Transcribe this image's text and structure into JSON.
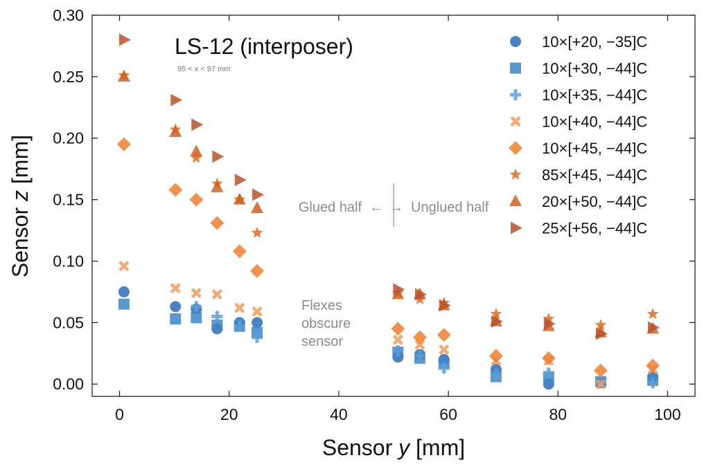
{
  "chart_data": {
    "type": "scatter",
    "title": "LS-12 (interposer)",
    "subtitle": "95 < x < 97 mm",
    "xlabel_prefix": "Sensor ",
    "xlabel_var": "y",
    "xlabel_suffix": " [mm]",
    "ylabel_prefix": "Sensor ",
    "ylabel_var": "z",
    "ylabel_suffix": " [mm]",
    "xlim": [
      -5,
      105
    ],
    "ylim": [
      -0.01,
      0.3
    ],
    "xticks": [
      0,
      20,
      40,
      60,
      80,
      100
    ],
    "xtick_labels": [
      "0",
      "20",
      "40",
      "60",
      "80",
      "100"
    ],
    "yticks": [
      0.0,
      0.05,
      0.1,
      0.15,
      0.2,
      0.25,
      0.3
    ],
    "ytick_labels": [
      "0.00",
      "0.05",
      "0.10",
      "0.15",
      "0.20",
      "0.25",
      "0.30"
    ],
    "grid": false,
    "legend_position": "top-right",
    "annotations": {
      "glued_half": "Glued half",
      "unglued_half": "Unglued half",
      "left_arrow": "←",
      "right_arrow": "→",
      "flexes_line1": "Flexes",
      "flexes_line2": "obscure",
      "flexes_line3": "sensor",
      "divider_x": 50
    },
    "x": [
      0.8,
      10.2,
      14.0,
      17.8,
      21.9,
      25.1,
      50.8,
      54.8,
      59.2,
      68.7,
      78.3,
      87.8,
      97.3
    ],
    "series": [
      {
        "name": "10×[+20, −35]C",
        "marker": "circle",
        "color": "#2b6cb5",
        "y": [
          0.075,
          0.063,
          0.061,
          0.045,
          0.05,
          0.05,
          0.022,
          0.024,
          0.02,
          0.012,
          0.0,
          0.001,
          0.006
        ]
      },
      {
        "name": "10×[+30, −44]C",
        "marker": "square",
        "color": "#3f86c8",
        "y": [
          0.065,
          0.053,
          0.054,
          0.048,
          0.047,
          0.042,
          0.026,
          0.021,
          0.017,
          0.006,
          0.006,
          0.002,
          0.003
        ]
      },
      {
        "name": "10×[+35, −44]C",
        "marker": "plus",
        "color": "#5a9fd6",
        "y": [
          null,
          null,
          0.063,
          0.055,
          0.047,
          0.038,
          0.027,
          0.023,
          0.013,
          0.008,
          0.009,
          0.001,
          0.001
        ]
      },
      {
        "name": "10×[+40, −44]C",
        "marker": "x",
        "color": "#f29a5a",
        "y": [
          0.096,
          0.078,
          0.074,
          0.073,
          0.062,
          0.059,
          0.036,
          0.032,
          0.028,
          0.019,
          0.019,
          0.0,
          0.012
        ]
      },
      {
        "name": "10×[+45, −44]C",
        "marker": "diamond",
        "color": "#ee8030",
        "y": [
          0.195,
          0.158,
          0.15,
          0.131,
          0.108,
          0.092,
          0.045,
          0.038,
          0.04,
          0.023,
          0.021,
          0.011,
          0.015
        ]
      },
      {
        "name": "85×[+45, −44]C",
        "marker": "star",
        "color": "#e06a20",
        "y": [
          0.251,
          0.207,
          0.184,
          0.163,
          0.15,
          0.123,
          0.074,
          0.069,
          0.066,
          0.057,
          0.053,
          0.048,
          0.057
        ]
      },
      {
        "name": "20×[+50, −44]C",
        "marker": "triangle-up",
        "color": "#d0601e",
        "y": [
          0.25,
          0.205,
          0.189,
          0.16,
          0.15,
          0.143,
          0.073,
          0.073,
          0.064,
          0.051,
          0.047,
          0.042,
          0.045
        ]
      },
      {
        "name": "25×[+56, −44]C",
        "marker": "triangle-right",
        "color": "#b8552a",
        "y": [
          0.28,
          0.231,
          0.211,
          0.185,
          0.166,
          0.154,
          0.077,
          0.073,
          0.064,
          0.051,
          0.049,
          0.041,
          0.046
        ]
      }
    ]
  }
}
